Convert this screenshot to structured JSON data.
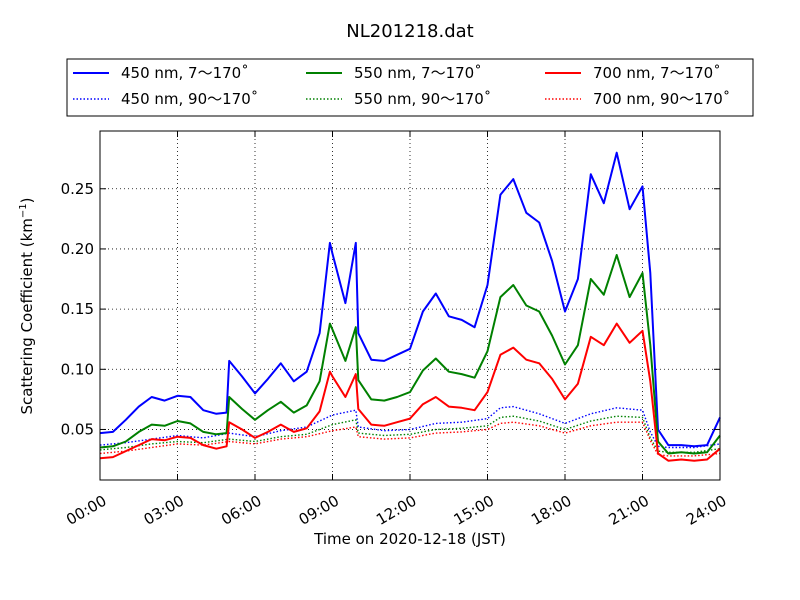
{
  "chart_data": {
    "type": "line",
    "title": "NL201218.dat",
    "xlabel": "Time on 2020-12-18 (JST)",
    "ylabel_main": "Scattering Coefficient (km",
    "ylabel_sup": "−1",
    "ylabel_close": ")",
    "xlim_hours": [
      0,
      24
    ],
    "ylim": [
      0.008,
      0.298
    ],
    "x_ticks": [
      {
        "hour": 0,
        "label": "00:00"
      },
      {
        "hour": 3,
        "label": "03:00"
      },
      {
        "hour": 6,
        "label": "06:00"
      },
      {
        "hour": 9,
        "label": "09:00"
      },
      {
        "hour": 12,
        "label": "12:00"
      },
      {
        "hour": 15,
        "label": "15:00"
      },
      {
        "hour": 18,
        "label": "18:00"
      },
      {
        "hour": 21,
        "label": "21:00"
      },
      {
        "hour": 24,
        "label": "24:00"
      }
    ],
    "y_ticks": [
      {
        "value": 0.05,
        "label": "0.05"
      },
      {
        "value": 0.1,
        "label": "0.10"
      },
      {
        "value": 0.15,
        "label": "0.15"
      },
      {
        "value": 0.2,
        "label": "0.20"
      },
      {
        "value": 0.25,
        "label": "0.25"
      }
    ],
    "grid": true,
    "legend_position": "top, above plot",
    "series": [
      {
        "name": "450 nm, 7～170˚",
        "color": "#0000ff",
        "dash": "solid",
        "x": [
          0,
          0.5,
          1,
          1.5,
          2,
          2.5,
          3,
          3.5,
          4,
          4.5,
          4.9,
          5,
          5.5,
          6,
          6.5,
          7,
          7.5,
          8,
          8.5,
          8.9,
          9,
          9.5,
          9.9,
          10,
          10.5,
          11,
          11.5,
          12,
          12.5,
          13,
          13.5,
          14,
          14.5,
          15,
          15.5,
          16,
          16.5,
          17,
          17.5,
          18,
          18.5,
          19,
          19.5,
          20,
          20.5,
          21,
          21.3,
          21.6,
          22,
          22.5,
          23,
          23.5,
          24
        ],
        "y": [
          0.047,
          0.048,
          0.058,
          0.069,
          0.077,
          0.074,
          0.078,
          0.077,
          0.066,
          0.063,
          0.064,
          0.107,
          0.094,
          0.08,
          0.092,
          0.105,
          0.09,
          0.098,
          0.13,
          0.205,
          0.196,
          0.155,
          0.205,
          0.13,
          0.108,
          0.107,
          0.112,
          0.117,
          0.148,
          0.163,
          0.144,
          0.141,
          0.135,
          0.17,
          0.245,
          0.258,
          0.23,
          0.222,
          0.19,
          0.148,
          0.175,
          0.262,
          0.238,
          0.28,
          0.233,
          0.252,
          0.18,
          0.05,
          0.037,
          0.037,
          0.036,
          0.037,
          0.06
        ]
      },
      {
        "name": "550 nm, 7～170˚",
        "color": "#008000",
        "dash": "solid",
        "x": [
          0,
          0.5,
          1,
          1.5,
          2,
          2.5,
          3,
          3.5,
          4,
          4.5,
          4.9,
          5,
          5.5,
          6,
          6.5,
          7,
          7.5,
          8,
          8.5,
          8.9,
          9,
          9.5,
          9.9,
          10,
          10.5,
          11,
          11.5,
          12,
          12.5,
          13,
          13.5,
          14,
          14.5,
          15,
          15.5,
          16,
          16.5,
          17,
          17.5,
          18,
          18.5,
          19,
          19.5,
          20,
          20.5,
          21,
          21.3,
          21.6,
          22,
          22.5,
          23,
          23.5,
          24
        ],
        "y": [
          0.035,
          0.036,
          0.04,
          0.048,
          0.054,
          0.053,
          0.057,
          0.055,
          0.048,
          0.046,
          0.047,
          0.077,
          0.067,
          0.058,
          0.066,
          0.073,
          0.064,
          0.07,
          0.09,
          0.138,
          0.133,
          0.107,
          0.135,
          0.091,
          0.075,
          0.074,
          0.077,
          0.081,
          0.099,
          0.109,
          0.098,
          0.096,
          0.093,
          0.115,
          0.16,
          0.17,
          0.153,
          0.148,
          0.128,
          0.104,
          0.12,
          0.175,
          0.162,
          0.195,
          0.16,
          0.18,
          0.12,
          0.04,
          0.03,
          0.031,
          0.03,
          0.031,
          0.045
        ]
      },
      {
        "name": "700 nm, 7～170˚",
        "color": "#ff0000",
        "dash": "solid",
        "x": [
          0,
          0.5,
          1,
          1.5,
          2,
          2.5,
          3,
          3.5,
          4,
          4.5,
          4.9,
          5,
          5.5,
          6,
          6.5,
          7,
          7.5,
          8,
          8.5,
          8.9,
          9,
          9.5,
          9.9,
          10,
          10.5,
          11,
          11.5,
          12,
          12.5,
          13,
          13.5,
          14,
          14.5,
          15,
          15.5,
          16,
          16.5,
          17,
          17.5,
          18,
          18.5,
          19,
          19.5,
          20,
          20.5,
          21,
          21.3,
          21.6,
          22,
          22.5,
          23,
          23.5,
          24
        ],
        "y": [
          0.026,
          0.027,
          0.032,
          0.037,
          0.042,
          0.041,
          0.044,
          0.043,
          0.037,
          0.034,
          0.036,
          0.056,
          0.05,
          0.043,
          0.048,
          0.054,
          0.048,
          0.051,
          0.065,
          0.098,
          0.094,
          0.077,
          0.096,
          0.067,
          0.054,
          0.053,
          0.056,
          0.059,
          0.071,
          0.077,
          0.069,
          0.068,
          0.066,
          0.081,
          0.112,
          0.118,
          0.108,
          0.105,
          0.092,
          0.075,
          0.088,
          0.127,
          0.12,
          0.138,
          0.122,
          0.132,
          0.09,
          0.03,
          0.024,
          0.025,
          0.024,
          0.025,
          0.034
        ]
      },
      {
        "name": "450 nm, 90～170˚",
        "color": "#0000ff",
        "dash": "dotted",
        "x": [
          0,
          1,
          2,
          3,
          4,
          5,
          6,
          7,
          8,
          9,
          9.9,
          10,
          11,
          12,
          13,
          14,
          15,
          15.5,
          16,
          17,
          18,
          19,
          20,
          21,
          21.3,
          21.6,
          22,
          23,
          24
        ],
        "y": [
          0.037,
          0.039,
          0.042,
          0.045,
          0.043,
          0.047,
          0.044,
          0.049,
          0.052,
          0.062,
          0.066,
          0.052,
          0.049,
          0.05,
          0.055,
          0.056,
          0.059,
          0.068,
          0.069,
          0.063,
          0.055,
          0.063,
          0.068,
          0.066,
          0.048,
          0.036,
          0.035,
          0.035,
          0.038
        ]
      },
      {
        "name": "550 nm, 90～170˚",
        "color": "#008000",
        "dash": "dotted",
        "x": [
          0,
          1,
          2,
          3,
          4,
          5,
          6,
          7,
          8,
          9,
          9.9,
          10,
          11,
          12,
          13,
          14,
          15,
          15.5,
          16,
          17,
          18,
          19,
          20,
          21,
          21.3,
          21.6,
          22,
          23,
          24
        ],
        "y": [
          0.033,
          0.035,
          0.038,
          0.04,
          0.039,
          0.042,
          0.04,
          0.044,
          0.046,
          0.054,
          0.058,
          0.047,
          0.045,
          0.046,
          0.05,
          0.051,
          0.053,
          0.06,
          0.061,
          0.057,
          0.05,
          0.057,
          0.061,
          0.06,
          0.043,
          0.032,
          0.031,
          0.031,
          0.034
        ]
      },
      {
        "name": "700 nm, 90～170˚",
        "color": "#ff0000",
        "dash": "dotted",
        "x": [
          0,
          1,
          2,
          3,
          4,
          5,
          6,
          7,
          8,
          9,
          9.9,
          10,
          11,
          12,
          13,
          14,
          15,
          15.5,
          16,
          17,
          18,
          19,
          20,
          21,
          21.3,
          21.6,
          22,
          23,
          24
        ],
        "y": [
          0.03,
          0.032,
          0.035,
          0.038,
          0.037,
          0.04,
          0.038,
          0.042,
          0.044,
          0.049,
          0.052,
          0.044,
          0.042,
          0.043,
          0.047,
          0.048,
          0.05,
          0.055,
          0.056,
          0.053,
          0.047,
          0.053,
          0.056,
          0.056,
          0.041,
          0.029,
          0.028,
          0.028,
          0.03
        ]
      }
    ]
  }
}
